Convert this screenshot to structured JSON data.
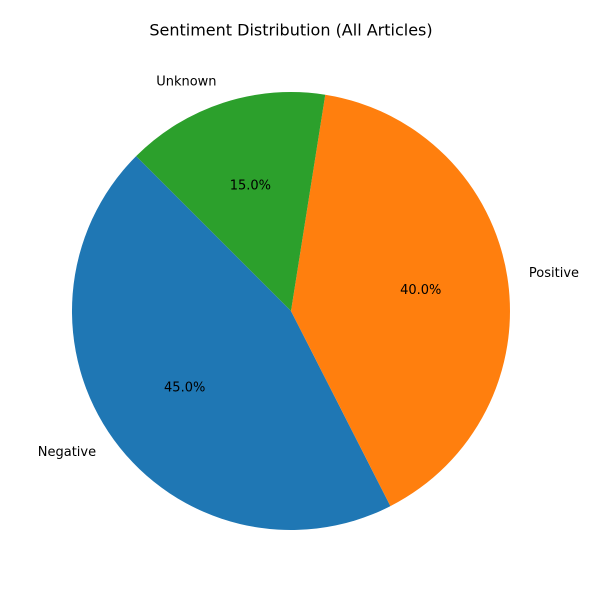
{
  "chart_data": {
    "type": "pie",
    "title": "Sentiment Distribution (All Articles)",
    "start_angle_deg": 135,
    "direction": "counterclockwise",
    "slices": [
      {
        "label": "Negative",
        "value": 45.0,
        "percent_label": "45.0%",
        "color": "#1f77b4"
      },
      {
        "label": "Positive",
        "value": 40.0,
        "percent_label": "40.0%",
        "color": "#ff7f0e"
      },
      {
        "label": "Unknown",
        "value": 15.0,
        "percent_label": "15.0%",
        "color": "#2ca02c"
      }
    ]
  }
}
